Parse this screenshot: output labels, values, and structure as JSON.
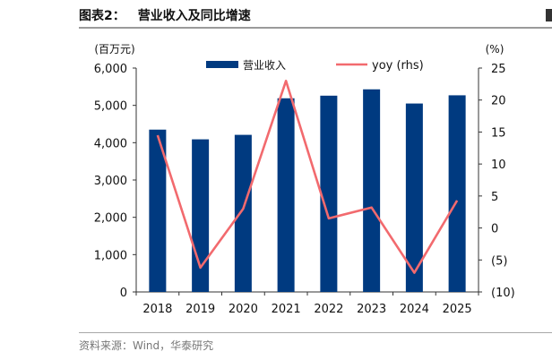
{
  "header": {
    "figure_no": "图表2：",
    "title": "营业收入及同比增速"
  },
  "source": "资料来源：Wind，华泰研究",
  "chart_data": {
    "type": "bar+line",
    "categories": [
      "2018",
      "2019",
      "2020",
      "2021",
      "2022",
      "2023",
      "2024",
      "2025"
    ],
    "series": [
      {
        "name": "营业收入",
        "type": "bar",
        "axis": "left",
        "color": "#003a80",
        "values": [
          4350,
          4090,
          4210,
          5190,
          5260,
          5430,
          5050,
          5270
        ]
      },
      {
        "name": "yoy (rhs)",
        "type": "line",
        "axis": "right",
        "color": "#f26a6e",
        "values": [
          14.5,
          -6.2,
          3.0,
          23.0,
          1.5,
          3.2,
          -7.0,
          4.3
        ]
      }
    ],
    "left_axis": {
      "unit": "(百万元)",
      "min": 0,
      "max": 6000,
      "ticks": [
        "0",
        "1,000",
        "2,000",
        "3,000",
        "4,000",
        "5,000",
        "6,000"
      ]
    },
    "right_axis": {
      "unit": "(%)",
      "min": -10,
      "max": 25,
      "ticks": [
        "(10)",
        "(5)",
        "0",
        "5",
        "10",
        "15",
        "20",
        "25"
      ]
    },
    "legend_position": "top-center",
    "grid": false
  }
}
